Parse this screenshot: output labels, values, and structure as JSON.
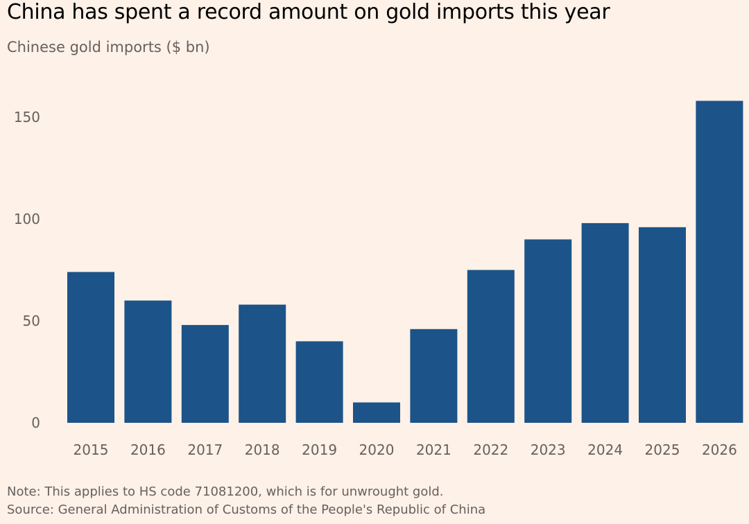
{
  "title": "China has spent a record amount on gold imports this year",
  "subtitle": "Chinese gold imports ($ bn)",
  "note": "Note: This applies to HS code 71081200, which is for unwrought gold.",
  "source": "Source: General Administration of Customs of the People's Republic of China",
  "colors": {
    "background": "#fdf1e8",
    "bar": "#1c5389",
    "tick_text": "#66605c"
  },
  "chart_data": {
    "type": "bar",
    "title": "China has spent a record amount on gold imports this year",
    "subtitle": "Chinese gold imports ($ bn)",
    "categories": [
      "2015",
      "2016",
      "2017",
      "2018",
      "2019",
      "2020",
      "2021",
      "2022",
      "2023",
      "2024",
      "2025",
      "2026"
    ],
    "values": [
      74,
      60,
      48,
      58,
      40,
      10,
      46,
      75,
      90,
      98,
      96,
      158
    ],
    "ylim": [
      0,
      160
    ],
    "yticks": [
      0,
      50,
      100,
      150
    ],
    "xlabel": "",
    "ylabel": "",
    "grid": false
  }
}
